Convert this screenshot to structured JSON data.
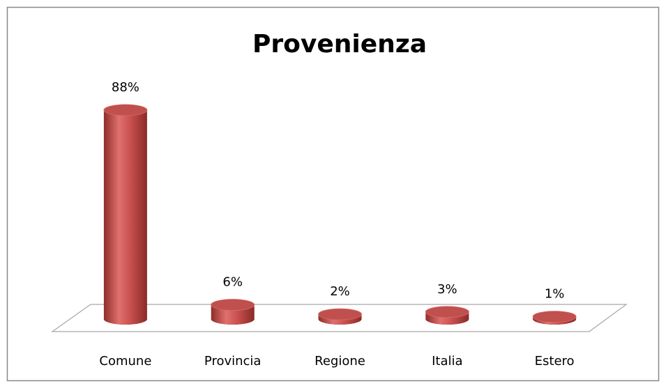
{
  "chart_data": {
    "type": "bar3d",
    "title": "Provenienza",
    "categories": [
      "Comune",
      "Provincia",
      "Regione",
      "Italia",
      "Estero"
    ],
    "values": [
      88,
      6,
      2,
      3,
      1
    ],
    "value_labels": [
      "88%",
      "6%",
      "2%",
      "3%",
      "1%"
    ],
    "color": "#c0504d"
  }
}
